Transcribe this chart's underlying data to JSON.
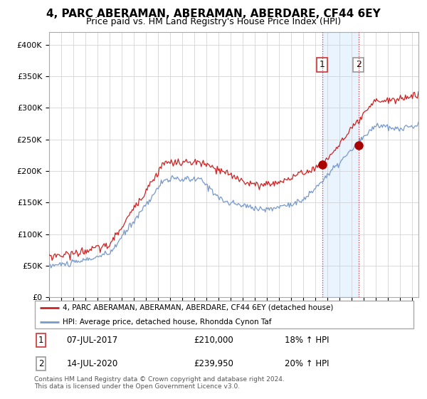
{
  "title": "4, PARC ABERAMAN, ABERAMAN, ABERDARE, CF44 6EY",
  "subtitle": "Price paid vs. HM Land Registry's House Price Index (HPI)",
  "ylim": [
    0,
    420000
  ],
  "yticks": [
    0,
    50000,
    100000,
    150000,
    200000,
    250000,
    300000,
    350000,
    400000
  ],
  "ytick_labels": [
    "£0",
    "£50K",
    "£100K",
    "£150K",
    "£200K",
    "£250K",
    "£300K",
    "£350K",
    "£400K"
  ],
  "hpi_color": "#7799cc",
  "price_color": "#cc2222",
  "marker_color": "#aa0000",
  "vline1_color": "#cc2222",
  "vline2_color": "#cc2222",
  "bg_shade_color": "#ddeeff",
  "sale1_year": 2017.54,
  "sale1_price": 210000,
  "sale1_label": "1",
  "sale2_year": 2020.54,
  "sale2_price": 239950,
  "sale2_label": "2",
  "legend_entry1": "4, PARC ABERAMAN, ABERAMAN, ABERDARE, CF44 6EY (detached house)",
  "legend_entry2": "HPI: Average price, detached house, Rhondda Cynon Taf",
  "annotation1_date": "07-JUL-2017",
  "annotation1_price": "£210,000",
  "annotation1_pct": "18% ↑ HPI",
  "annotation2_date": "14-JUL-2020",
  "annotation2_price": "£239,950",
  "annotation2_pct": "20% ↑ HPI",
  "footer": "Contains HM Land Registry data © Crown copyright and database right 2024.\nThis data is licensed under the Open Government Licence v3.0.",
  "title_fontsize": 11,
  "subtitle_fontsize": 9,
  "xmin": 1995,
  "xmax": 2025.5
}
